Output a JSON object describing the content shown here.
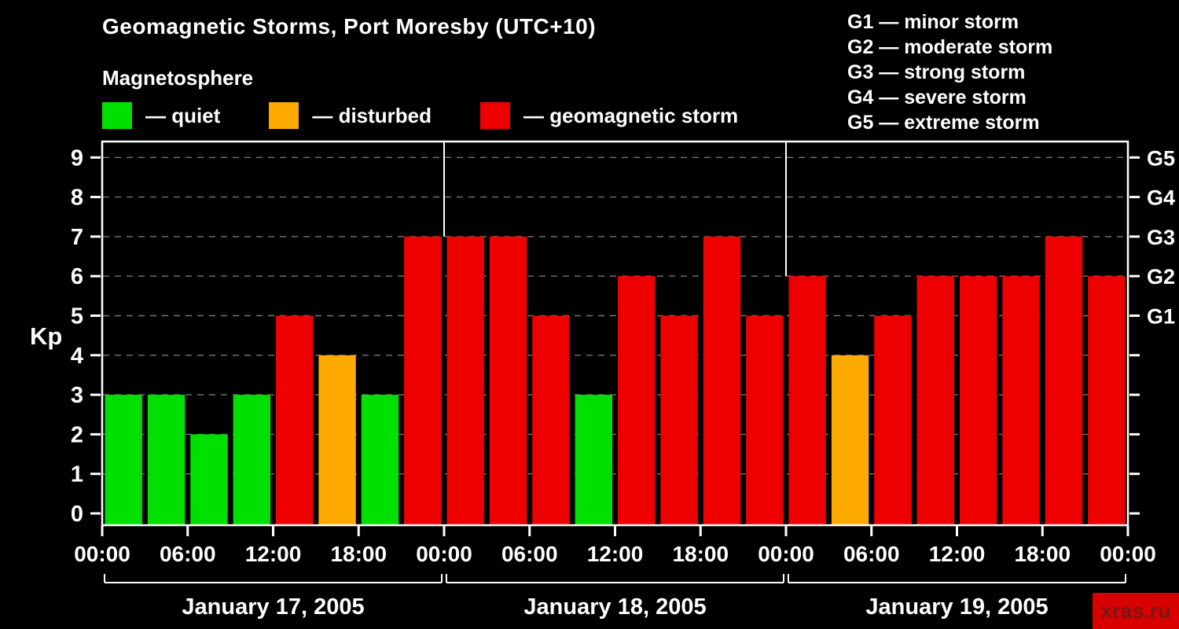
{
  "title": "Geomagnetic Storms, Port Moresby (UTC+10)",
  "subtitle": "Magnetosphere",
  "axis": {
    "y_label": "Kp"
  },
  "watermark": "xras.ru",
  "legend": {
    "items": [
      {
        "key": "quiet",
        "label": "— quiet",
        "color": "#00e000"
      },
      {
        "key": "disturbed",
        "label": "— disturbed",
        "color": "#ffaa00"
      },
      {
        "key": "storm",
        "label": "— geomagnetic storm",
        "color": "#ee0000"
      }
    ]
  },
  "g_scale": [
    {
      "code": "G1",
      "label": "G1 — minor storm",
      "kp": 5
    },
    {
      "code": "G2",
      "label": "G2 — moderate storm",
      "kp": 6
    },
    {
      "code": "G3",
      "label": "G3 — strong storm",
      "kp": 7
    },
    {
      "code": "G4",
      "label": "G4 — severe storm",
      "kp": 8
    },
    {
      "code": "G5",
      "label": "G5 — extreme storm",
      "kp": 9
    }
  ],
  "chart_data": {
    "type": "bar",
    "title": "Geomagnetic Storms, Port Moresby (UTC+10)",
    "ylabel": "Kp",
    "ylim": [
      0,
      9.5
    ],
    "yticks": [
      0,
      1,
      2,
      3,
      4,
      5,
      6,
      7,
      8,
      9
    ],
    "grid": "horizontal-dashed",
    "bar_interval_hours": 3,
    "x_tick_labels": [
      "00:00",
      "06:00",
      "12:00",
      "18:00",
      "00:00",
      "06:00",
      "12:00",
      "18:00",
      "00:00",
      "06:00",
      "12:00",
      "18:00",
      "00:00"
    ],
    "right_axis": [
      {
        "code": "G1",
        "kp": 5
      },
      {
        "code": "G2",
        "kp": 6
      },
      {
        "code": "G3",
        "kp": 7
      },
      {
        "code": "G4",
        "kp": 8
      },
      {
        "code": "G5",
        "kp": 9
      }
    ],
    "colors": {
      "quiet": "#00e000",
      "disturbed": "#ffaa00",
      "storm": "#ee0000"
    },
    "days": [
      {
        "date": "January 17, 2005",
        "values": [
          3,
          3,
          2,
          3,
          5,
          4,
          3,
          7
        ],
        "states": [
          "quiet",
          "quiet",
          "quiet",
          "quiet",
          "storm",
          "disturbed",
          "quiet",
          "storm"
        ]
      },
      {
        "date": "January 18, 2005",
        "values": [
          7,
          7,
          5,
          3,
          6,
          5,
          7,
          5
        ],
        "states": [
          "storm",
          "storm",
          "storm",
          "quiet",
          "storm",
          "storm",
          "storm",
          "storm"
        ]
      },
      {
        "date": "January 19, 2005",
        "values": [
          6,
          4,
          5,
          6,
          6,
          6,
          7,
          6
        ],
        "states": [
          "storm",
          "disturbed",
          "storm",
          "storm",
          "storm",
          "storm",
          "storm",
          "storm"
        ]
      }
    ]
  }
}
